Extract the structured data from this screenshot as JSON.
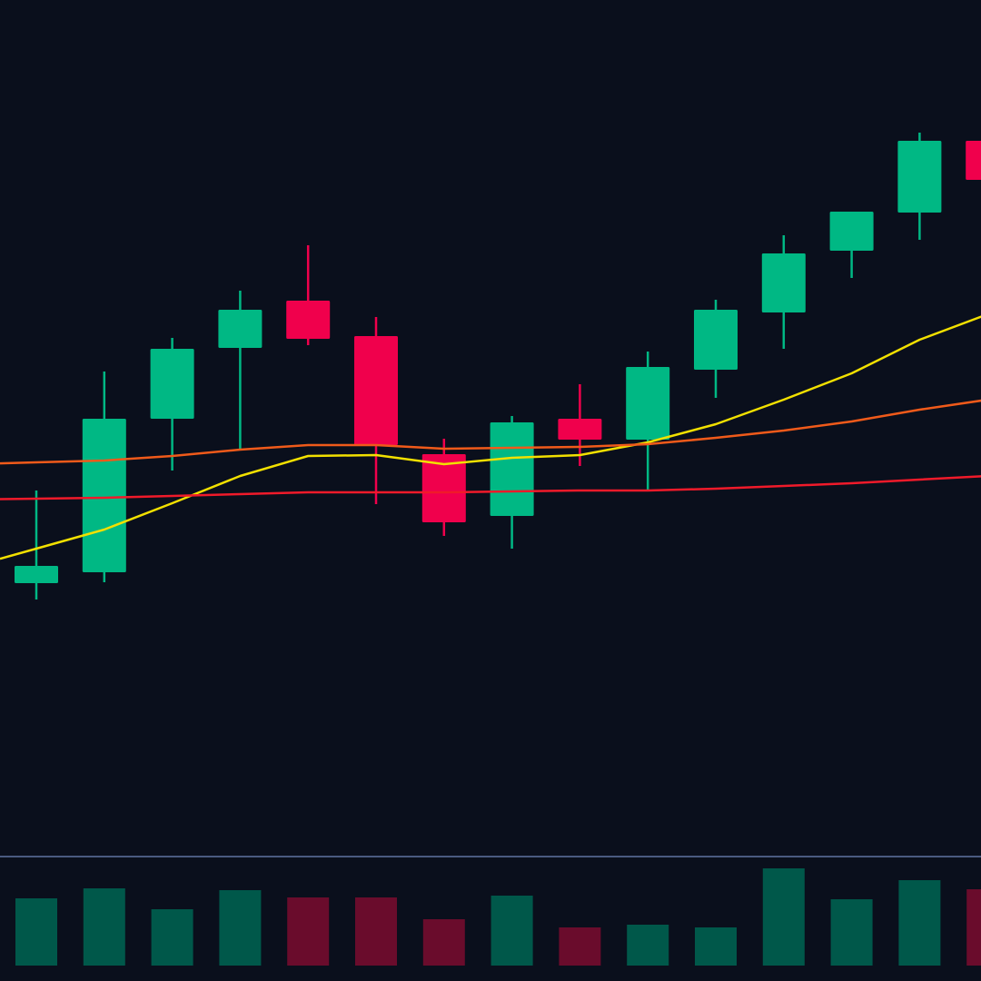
{
  "chart_data": {
    "type": "candlestick",
    "title": "",
    "xlabel": "",
    "ylabel": "",
    "ylim": [
      6,
      100
    ],
    "grid": false,
    "candles": [
      {
        "open": 35.8,
        "high": 46.0,
        "low": 34.0,
        "close": 37.7
      },
      {
        "open": 37.0,
        "high": 59.1,
        "low": 35.9,
        "close": 53.9
      },
      {
        "open": 53.9,
        "high": 62.8,
        "low": 48.2,
        "close": 61.6
      },
      {
        "open": 61.7,
        "high": 68.0,
        "low": 50.5,
        "close": 65.9
      },
      {
        "open": 66.9,
        "high": 73.0,
        "low": 62.0,
        "close": 62.7
      },
      {
        "open": 63.0,
        "high": 65.1,
        "low": 44.5,
        "close": 51.0
      },
      {
        "open": 50.0,
        "high": 51.7,
        "low": 41.0,
        "close": 42.5
      },
      {
        "open": 43.2,
        "high": 54.2,
        "low": 39.6,
        "close": 53.5
      },
      {
        "open": 53.9,
        "high": 57.7,
        "low": 48.7,
        "close": 51.6
      },
      {
        "open": 51.6,
        "high": 61.3,
        "low": 46.0,
        "close": 59.6
      },
      {
        "open": 59.3,
        "high": 67.0,
        "low": 56.2,
        "close": 65.9
      },
      {
        "open": 65.6,
        "high": 74.1,
        "low": 61.6,
        "close": 72.1
      },
      {
        "open": 72.4,
        "high": 76.7,
        "low": 69.4,
        "close": 76.7
      },
      {
        "open": 76.6,
        "high": 85.4,
        "low": 73.6,
        "close": 84.5
      },
      {
        "open": 84.5,
        "high": 85.5,
        "low": 79.0,
        "close": 80.2
      }
    ],
    "volume": [
      74,
      85,
      62,
      83,
      75,
      75,
      51,
      77,
      42,
      45,
      42,
      107,
      73,
      94,
      84
    ],
    "volume_max": 136,
    "moving_averages": [
      {
        "color": "#f2e000",
        "values": [
          39.6,
          41.7,
          44.6,
          47.6,
          49.8,
          49.9,
          48.9,
          49.6,
          49.9,
          51.3,
          53.3,
          56.0,
          58.9,
          62.6,
          65.4
        ]
      },
      {
        "color": "#f05a1a",
        "values": [
          49.1,
          49.3,
          49.8,
          50.5,
          51.0,
          51.0,
          50.6,
          50.7,
          50.8,
          51.1,
          51.8,
          52.6,
          53.6,
          54.9,
          56.0
        ]
      },
      {
        "color": "#f01a2a",
        "values": [
          45.1,
          45.2,
          45.4,
          45.6,
          45.8,
          45.8,
          45.8,
          45.9,
          46.0,
          46.0,
          46.2,
          46.5,
          46.8,
          47.2,
          47.6
        ]
      }
    ],
    "colors": {
      "background": "#0a0f1c",
      "up": "#00b884",
      "down": "#f0004c",
      "volume_up": "#00584a",
      "volume_down": "#6a0c2c",
      "divider": "#4a5a80"
    }
  }
}
